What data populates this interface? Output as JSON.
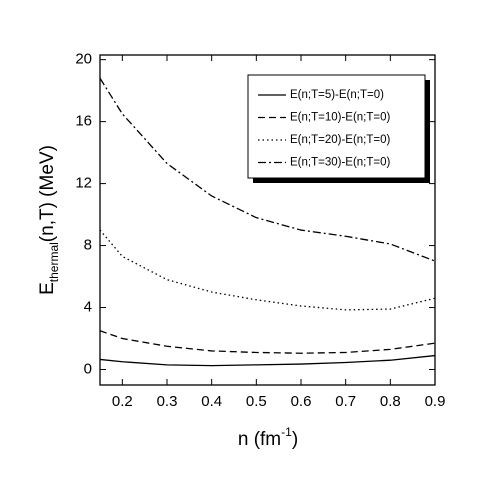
{
  "chart_data": {
    "type": "line",
    "y_label": {
      "main": "E",
      "sub": "thermal",
      "rest": "(n,T) (MeV)"
    },
    "x_label": {
      "main": "n (fm",
      "sup": "-1",
      "rest": ")"
    },
    "x": [
      0.15,
      0.2,
      0.3,
      0.4,
      0.5,
      0.6,
      0.7,
      0.8,
      0.9
    ],
    "series": [
      {
        "name": "E(n;T=5)-E(n;T=0)",
        "color": "#000000",
        "dash": "solid",
        "values": [
          0.65,
          0.5,
          0.3,
          0.25,
          0.3,
          0.35,
          0.45,
          0.6,
          0.9
        ]
      },
      {
        "name": "E(n;T=10)-E(n;T=0)",
        "color": "#000000",
        "dash": "dashed",
        "values": [
          2.5,
          2.0,
          1.5,
          1.2,
          1.1,
          1.05,
          1.1,
          1.3,
          1.7
        ]
      },
      {
        "name": "E(n;T=20)-E(n;T=0)",
        "color": "#000000",
        "dash": "dotted",
        "values": [
          9.0,
          7.3,
          5.8,
          5.0,
          4.5,
          4.1,
          3.85,
          3.9,
          4.6
        ]
      },
      {
        "name": "E(n;T=30)-E(n;T=0)",
        "color": "#000000",
        "dash": "dashdot",
        "values": [
          18.8,
          16.5,
          13.3,
          11.2,
          9.8,
          9.0,
          8.6,
          8.1,
          7.0
        ]
      }
    ],
    "xlim": [
      0.15,
      0.9
    ],
    "xticks": [
      0.2,
      0.3,
      0.4,
      0.5,
      0.6,
      0.7,
      0.8,
      0.9
    ],
    "ylim": [
      -1,
      20.3
    ],
    "yticks": [
      0,
      4,
      8,
      12,
      16,
      20
    ],
    "legend": "upper right"
  }
}
